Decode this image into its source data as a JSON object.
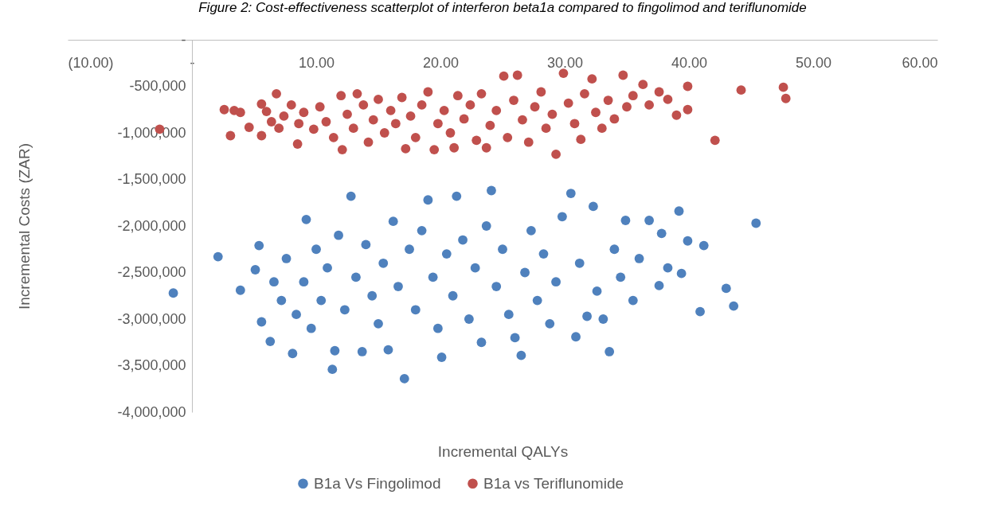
{
  "chart_data": {
    "type": "scatter",
    "title": "Figure 2: Cost-effectiveness scatterplot of interferon beta1a compared to fingolimod and teriflunomide",
    "xlabel": "Incremental QALYs",
    "ylabel": "Incremental Costs (ZAR)",
    "xlim": [
      -10,
      60
    ],
    "xticks": [
      {
        "value": -10,
        "label": "(10.00)"
      },
      {
        "value": 0,
        "label": "-"
      },
      {
        "value": 10,
        "label": "10.00"
      },
      {
        "value": 20,
        "label": "20.00"
      },
      {
        "value": 30,
        "label": "30.00"
      },
      {
        "value": 40,
        "label": "40.00"
      },
      {
        "value": 50,
        "label": "50.00"
      },
      {
        "value": 60,
        "label": "60.00"
      }
    ],
    "ylim": [
      -4000000,
      0
    ],
    "yticks": [
      {
        "value": 0,
        "label": "-"
      },
      {
        "value": -500000,
        "label": "-500,000"
      },
      {
        "value": -1000000,
        "label": "-1,000,000"
      },
      {
        "value": -1500000,
        "label": "-1,500,000"
      },
      {
        "value": -2000000,
        "label": "-2,000,000"
      },
      {
        "value": -2500000,
        "label": "-2,500,000"
      },
      {
        "value": -3000000,
        "label": "-3,000,000"
      },
      {
        "value": -3500000,
        "label": "-3,500,000"
      },
      {
        "value": -4000000,
        "label": "-4,000,000"
      }
    ],
    "grid": false,
    "legend": "bottom",
    "marker": "circle",
    "series": [
      {
        "name": "B1a Vs Fingolimod",
        "color": "#4f81bd",
        "x": [
          -1.5,
          2.1,
          3.9,
          5.1,
          5.4,
          5.6,
          6.3,
          6.6,
          7.2,
          7.6,
          8.1,
          8.4,
          9.0,
          9.2,
          9.6,
          10.0,
          10.4,
          10.9,
          11.3,
          11.5,
          11.8,
          12.3,
          12.8,
          13.2,
          13.7,
          14.0,
          14.5,
          15.0,
          15.4,
          15.8,
          16.2,
          16.6,
          17.1,
          17.5,
          18.0,
          18.5,
          19.0,
          19.4,
          19.8,
          20.1,
          20.5,
          21.0,
          21.3,
          21.8,
          22.3,
          22.8,
          23.3,
          23.7,
          24.1,
          24.5,
          25.0,
          25.5,
          26.0,
          26.5,
          26.8,
          27.3,
          27.8,
          28.3,
          28.8,
          29.3,
          29.8,
          30.5,
          30.9,
          31.2,
          31.8,
          32.3,
          32.6,
          33.1,
          33.6,
          34.0,
          34.5,
          34.9,
          35.5,
          36.0,
          36.8,
          37.6,
          37.8,
          38.3,
          39.2,
          39.4,
          39.9,
          40.9,
          41.2,
          43.0,
          43.6,
          45.4
        ],
        "values": [
          -2720000,
          -2330000,
          -2690000,
          -2470000,
          -2210000,
          -3030000,
          -3240000,
          -2600000,
          -2800000,
          -2350000,
          -3370000,
          -2950000,
          -2600000,
          -1930000,
          -3100000,
          -2250000,
          -2800000,
          -2450000,
          -3540000,
          -3340000,
          -2100000,
          -2900000,
          -1680000,
          -2550000,
          -3350000,
          -2200000,
          -2750000,
          -3050000,
          -2400000,
          -3330000,
          -1950000,
          -2650000,
          -3640000,
          -2250000,
          -2900000,
          -2050000,
          -1720000,
          -2550000,
          -3100000,
          -3410000,
          -2300000,
          -2750000,
          -1680000,
          -2150000,
          -3000000,
          -2450000,
          -3250000,
          -2000000,
          -1620000,
          -2650000,
          -2250000,
          -2950000,
          -3200000,
          -3390000,
          -2500000,
          -2050000,
          -2800000,
          -2300000,
          -3050000,
          -2600000,
          -1900000,
          -1650000,
          -3190000,
          -2400000,
          -2970000,
          -1790000,
          -2700000,
          -3000000,
          -3350000,
          -2250000,
          -2550000,
          -1940000,
          -2800000,
          -2350000,
          -1940000,
          -2640000,
          -2080000,
          -2450000,
          -1840000,
          -2510000,
          -2160000,
          -2920000,
          -2210000,
          -2670000,
          -2860000,
          -1970000
        ]
      },
      {
        "name": "B1a vs Teriflunomide",
        "color": "#c0504d",
        "x": [
          -2.6,
          2.6,
          3.1,
          3.4,
          3.9,
          4.6,
          5.6,
          5.6,
          6.0,
          6.4,
          6.8,
          7.0,
          7.4,
          8.0,
          8.5,
          8.6,
          9.0,
          9.8,
          10.3,
          10.8,
          11.4,
          12.0,
          12.1,
          12.5,
          13.0,
          13.3,
          13.8,
          14.2,
          14.6,
          15.0,
          15.5,
          16.0,
          16.4,
          16.9,
          17.2,
          17.6,
          18.0,
          18.5,
          19.0,
          19.5,
          19.8,
          20.3,
          20.8,
          21.1,
          21.4,
          21.9,
          22.4,
          22.9,
          23.3,
          23.7,
          24.0,
          24.5,
          25.1,
          25.4,
          25.9,
          26.2,
          26.6,
          27.1,
          27.6,
          28.1,
          28.5,
          29.0,
          29.3,
          29.9,
          30.3,
          30.8,
          31.3,
          31.6,
          32.2,
          32.5,
          33.0,
          33.5,
          34.0,
          34.7,
          35.0,
          35.5,
          36.3,
          36.8,
          37.6,
          38.3,
          39.0,
          39.9,
          39.9,
          42.1,
          44.2,
          47.6,
          47.8
        ],
        "values": [
          -960000,
          -750000,
          -1030000,
          -760000,
          -780000,
          -940000,
          -690000,
          -1030000,
          -770000,
          -880000,
          -580000,
          -950000,
          -820000,
          -700000,
          -1120000,
          -900000,
          -780000,
          -960000,
          -720000,
          -880000,
          -1050000,
          -600000,
          -1180000,
          -800000,
          -950000,
          -580000,
          -700000,
          -1100000,
          -860000,
          -640000,
          -1000000,
          -760000,
          -900000,
          -620000,
          -1170000,
          -820000,
          -1050000,
          -700000,
          -560000,
          -1180000,
          -900000,
          -760000,
          -1000000,
          -1160000,
          -600000,
          -850000,
          -700000,
          -1080000,
          -580000,
          -1160000,
          -920000,
          -760000,
          -390000,
          -1050000,
          -650000,
          -380000,
          -860000,
          -1100000,
          -720000,
          -560000,
          -950000,
          -800000,
          -1230000,
          -360000,
          -680000,
          -900000,
          -1070000,
          -580000,
          -420000,
          -780000,
          -950000,
          -650000,
          -850000,
          -380000,
          -720000,
          -600000,
          -480000,
          -700000,
          -560000,
          -640000,
          -810000,
          -500000,
          -750000,
          -1080000,
          -540000,
          -510000,
          -630000
        ]
      }
    ]
  }
}
